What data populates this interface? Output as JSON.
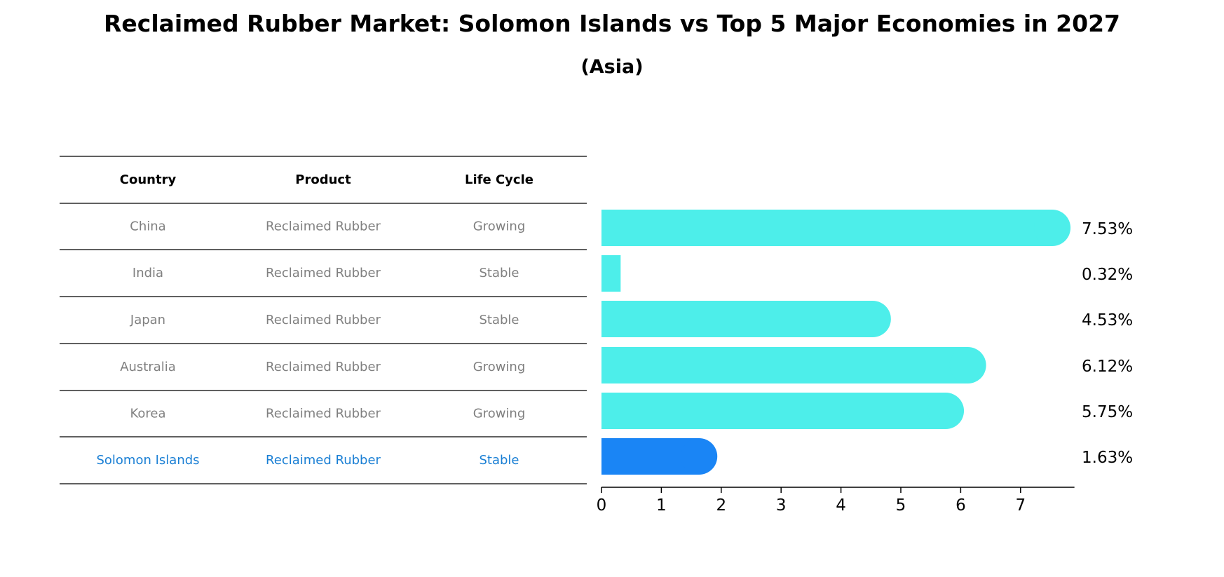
{
  "title": "Reclaimed Rubber Market: Solomon Islands vs Top 5 Major Economies in 2027",
  "subtitle": "(Asia)",
  "table": {
    "headers": [
      "Country",
      "Product",
      "Life Cycle"
    ],
    "rows": [
      [
        "China",
        "Reclaimed Rubber",
        "Growing"
      ],
      [
        "India",
        "Reclaimed Rubber",
        "Stable"
      ],
      [
        "Japan",
        "Reclaimed Rubber",
        "Stable"
      ],
      [
        "Australia",
        "Reclaimed Rubber",
        "Growing"
      ],
      [
        "Korea",
        "Reclaimed Rubber",
        "Growing"
      ],
      [
        "Solomon Islands",
        "Reclaimed Rubber",
        "Stable"
      ]
    ],
    "highlight_row": 5
  },
  "chart_data": {
    "type": "bar",
    "orientation": "horizontal",
    "categories": [
      "China",
      "India",
      "Japan",
      "Australia",
      "Korea",
      "Solomon Islands"
    ],
    "values": [
      7.53,
      0.32,
      4.53,
      6.12,
      5.75,
      1.63
    ],
    "value_labels": [
      "7.53%",
      "0.32%",
      "4.53%",
      "6.12%",
      "5.75%",
      "1.63%"
    ],
    "xlim": [
      0,
      7.9
    ],
    "xticks": [
      "0",
      "1",
      "2",
      "3",
      "4",
      "5",
      "6",
      "7"
    ],
    "grid": false,
    "highlight_index": 5
  },
  "colors": {
    "bar": "#4deeea",
    "highlight": "#1a85f5",
    "muted_text": "#808080",
    "highlight_text": "#1a7fd4",
    "text": "#000000"
  }
}
